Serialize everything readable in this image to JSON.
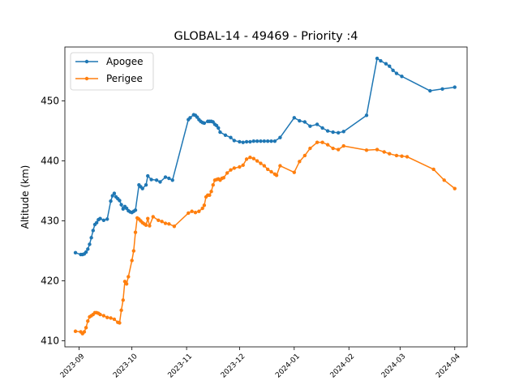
{
  "chart_data": {
    "type": "line",
    "title": "GLOBAL-14 - 49469 - Priority :4",
    "xlabel": "",
    "ylabel": "Altitude (km)",
    "xlim": [
      "2023-08-24",
      "2024-04-08"
    ],
    "ylim": [
      409,
      459
    ],
    "x_ticks": [
      "2023-09",
      "2023-10",
      "2023-11",
      "2023-12",
      "2024-01",
      "2024-02",
      "2024-03",
      "2024-04"
    ],
    "y_ticks": [
      410,
      420,
      430,
      440,
      450
    ],
    "grid": false,
    "legend": "top-left",
    "series": [
      {
        "name": "Apogee",
        "color": "#1f77b4",
        "points": [
          [
            "2023-08-30",
            424.7
          ],
          [
            "2023-09-02",
            424.4
          ],
          [
            "2023-09-03",
            424.4
          ],
          [
            "2023-09-04",
            424.5
          ],
          [
            "2023-09-05",
            424.8
          ],
          [
            "2023-09-06",
            425.3
          ],
          [
            "2023-09-07",
            426.1
          ],
          [
            "2023-09-08",
            427.2
          ],
          [
            "2023-09-09",
            428.4
          ],
          [
            "2023-09-10",
            429.4
          ],
          [
            "2023-09-11",
            429.7
          ],
          [
            "2023-09-12",
            430.2
          ],
          [
            "2023-09-13",
            430.4
          ],
          [
            "2023-09-15",
            430.1
          ],
          [
            "2023-09-17",
            430.3
          ],
          [
            "2023-09-19",
            433.3
          ],
          [
            "2023-09-20",
            434.2
          ],
          [
            "2023-09-21",
            434.6
          ],
          [
            "2023-09-22",
            434.0
          ],
          [
            "2023-09-23",
            433.7
          ],
          [
            "2023-09-24",
            433.4
          ],
          [
            "2023-09-25",
            432.7
          ],
          [
            "2023-09-26",
            432.0
          ],
          [
            "2023-09-27",
            432.4
          ],
          [
            "2023-09-28",
            432.1
          ],
          [
            "2023-09-29",
            431.7
          ],
          [
            "2023-09-30",
            431.5
          ],
          [
            "2023-10-01",
            431.4
          ],
          [
            "2023-10-02",
            431.6
          ],
          [
            "2023-10-03",
            431.8
          ],
          [
            "2023-10-05",
            436.0
          ],
          [
            "2023-10-06",
            435.7
          ],
          [
            "2023-10-07",
            435.4
          ],
          [
            "2023-10-09",
            436.0
          ],
          [
            "2023-10-10",
            437.5
          ],
          [
            "2023-10-12",
            436.9
          ],
          [
            "2023-10-15",
            436.8
          ],
          [
            "2023-10-17",
            436.5
          ],
          [
            "2023-10-20",
            437.3
          ],
          [
            "2023-10-22",
            437.1
          ],
          [
            "2023-10-24",
            436.8
          ],
          [
            "2023-11-02",
            446.9
          ],
          [
            "2023-11-03",
            447.2
          ],
          [
            "2023-11-05",
            447.7
          ],
          [
            "2023-11-06",
            447.6
          ],
          [
            "2023-11-07",
            447.3
          ],
          [
            "2023-11-08",
            446.9
          ],
          [
            "2023-11-09",
            446.6
          ],
          [
            "2023-11-10",
            446.4
          ],
          [
            "2023-11-11",
            446.3
          ],
          [
            "2023-11-13",
            446.6
          ],
          [
            "2023-11-14",
            446.6
          ],
          [
            "2023-11-15",
            446.6
          ],
          [
            "2023-11-16",
            446.5
          ],
          [
            "2023-11-17",
            446.1
          ],
          [
            "2023-11-18",
            445.9
          ],
          [
            "2023-11-19",
            445.5
          ],
          [
            "2023-11-20",
            444.8
          ],
          [
            "2023-11-23",
            444.3
          ],
          [
            "2023-11-26",
            443.9
          ],
          [
            "2023-11-28",
            443.4
          ],
          [
            "2023-12-01",
            443.2
          ],
          [
            "2023-12-03",
            443.1
          ],
          [
            "2023-12-05",
            443.2
          ],
          [
            "2023-12-07",
            443.2
          ],
          [
            "2023-12-09",
            443.3
          ],
          [
            "2023-12-11",
            443.3
          ],
          [
            "2023-12-13",
            443.3
          ],
          [
            "2023-12-15",
            443.3
          ],
          [
            "2023-12-17",
            443.3
          ],
          [
            "2023-12-19",
            443.3
          ],
          [
            "2023-12-21",
            443.3
          ],
          [
            "2023-12-24",
            443.9
          ],
          [
            "2024-01-01",
            447.2
          ],
          [
            "2024-01-04",
            446.7
          ],
          [
            "2024-01-07",
            446.5
          ],
          [
            "2024-01-10",
            445.8
          ],
          [
            "2024-01-14",
            446.1
          ],
          [
            "2024-01-17",
            445.5
          ],
          [
            "2024-01-20",
            445.0
          ],
          [
            "2024-01-23",
            444.8
          ],
          [
            "2024-01-26",
            444.7
          ],
          [
            "2024-01-29",
            444.9
          ],
          [
            "2024-02-11",
            447.6
          ],
          [
            "2024-02-17",
            457.1
          ],
          [
            "2024-02-19",
            456.7
          ],
          [
            "2024-02-22",
            456.2
          ],
          [
            "2024-02-24",
            455.8
          ],
          [
            "2024-02-26",
            455.1
          ],
          [
            "2024-02-28",
            454.6
          ],
          [
            "2024-03-02",
            454.1
          ],
          [
            "2024-03-18",
            451.7
          ],
          [
            "2024-03-25",
            452.0
          ],
          [
            "2024-04-01",
            452.3
          ]
        ]
      },
      {
        "name": "Perigee",
        "color": "#ff7f0e",
        "points": [
          [
            "2023-08-30",
            411.6
          ],
          [
            "2023-09-02",
            411.5
          ],
          [
            "2023-09-03",
            411.2
          ],
          [
            "2023-09-04",
            411.5
          ],
          [
            "2023-09-05",
            412.2
          ],
          [
            "2023-09-06",
            413.3
          ],
          [
            "2023-09-07",
            414.0
          ],
          [
            "2023-09-08",
            414.2
          ],
          [
            "2023-09-09",
            414.4
          ],
          [
            "2023-09-10",
            414.7
          ],
          [
            "2023-09-11",
            414.7
          ],
          [
            "2023-09-12",
            414.6
          ],
          [
            "2023-09-13",
            414.4
          ],
          [
            "2023-09-15",
            414.2
          ],
          [
            "2023-09-17",
            413.9
          ],
          [
            "2023-09-19",
            413.8
          ],
          [
            "2023-09-21",
            413.6
          ],
          [
            "2023-09-23",
            413.1
          ],
          [
            "2023-09-24",
            413.0
          ],
          [
            "2023-09-25",
            415.1
          ],
          [
            "2023-09-26",
            416.8
          ],
          [
            "2023-09-27",
            419.9
          ],
          [
            "2023-09-28",
            419.5
          ],
          [
            "2023-09-29",
            420.7
          ],
          [
            "2023-10-01",
            423.4
          ],
          [
            "2023-10-02",
            425.0
          ],
          [
            "2023-10-03",
            428.1
          ],
          [
            "2023-10-04",
            430.5
          ],
          [
            "2023-10-05",
            430.3
          ],
          [
            "2023-10-06",
            430.0
          ],
          [
            "2023-10-07",
            429.7
          ],
          [
            "2023-10-08",
            429.5
          ],
          [
            "2023-10-09",
            429.3
          ],
          [
            "2023-10-10",
            430.4
          ],
          [
            "2023-10-11",
            429.2
          ],
          [
            "2023-10-13",
            430.7
          ],
          [
            "2023-10-16",
            430.1
          ],
          [
            "2023-10-18",
            429.9
          ],
          [
            "2023-10-20",
            429.6
          ],
          [
            "2023-10-22",
            429.5
          ],
          [
            "2023-10-25",
            429.1
          ],
          [
            "2023-11-02",
            431.3
          ],
          [
            "2023-11-04",
            431.6
          ],
          [
            "2023-11-06",
            431.4
          ],
          [
            "2023-11-08",
            431.6
          ],
          [
            "2023-11-10",
            432.1
          ],
          [
            "2023-11-11",
            432.6
          ],
          [
            "2023-11-12",
            434.0
          ],
          [
            "2023-11-13",
            434.3
          ],
          [
            "2023-11-14",
            434.3
          ],
          [
            "2023-11-15",
            434.9
          ],
          [
            "2023-11-16",
            436.0
          ],
          [
            "2023-11-17",
            436.8
          ],
          [
            "2023-11-18",
            436.9
          ],
          [
            "2023-11-19",
            437.0
          ],
          [
            "2023-11-20",
            436.8
          ],
          [
            "2023-11-21",
            437.1
          ],
          [
            "2023-11-22",
            437.2
          ],
          [
            "2023-11-24",
            438.0
          ],
          [
            "2023-11-26",
            438.5
          ],
          [
            "2023-11-28",
            438.8
          ],
          [
            "2023-12-01",
            439.0
          ],
          [
            "2023-12-03",
            439.3
          ],
          [
            "2023-12-05",
            440.3
          ],
          [
            "2023-12-07",
            440.6
          ],
          [
            "2023-12-09",
            440.4
          ],
          [
            "2023-12-11",
            440.0
          ],
          [
            "2023-12-13",
            439.6
          ],
          [
            "2023-12-15",
            439.2
          ],
          [
            "2023-12-17",
            438.6
          ],
          [
            "2023-12-19",
            438.2
          ],
          [
            "2023-12-21",
            437.8
          ],
          [
            "2023-12-22",
            437.6
          ],
          [
            "2023-12-24",
            439.2
          ],
          [
            "2024-01-01",
            438.1
          ],
          [
            "2024-01-04",
            439.9
          ],
          [
            "2024-01-07",
            440.9
          ],
          [
            "2024-01-10",
            442.1
          ],
          [
            "2024-01-14",
            443.1
          ],
          [
            "2024-01-17",
            443.1
          ],
          [
            "2024-01-20",
            442.7
          ],
          [
            "2024-01-23",
            442.1
          ],
          [
            "2024-01-26",
            441.9
          ],
          [
            "2024-01-29",
            442.5
          ],
          [
            "2024-02-11",
            441.8
          ],
          [
            "2024-02-17",
            441.9
          ],
          [
            "2024-02-21",
            441.5
          ],
          [
            "2024-02-24",
            441.2
          ],
          [
            "2024-02-28",
            440.9
          ],
          [
            "2024-03-02",
            440.8
          ],
          [
            "2024-03-05",
            440.7
          ],
          [
            "2024-03-20",
            438.6
          ],
          [
            "2024-03-26",
            436.8
          ],
          [
            "2024-04-01",
            435.4
          ]
        ]
      }
    ]
  }
}
